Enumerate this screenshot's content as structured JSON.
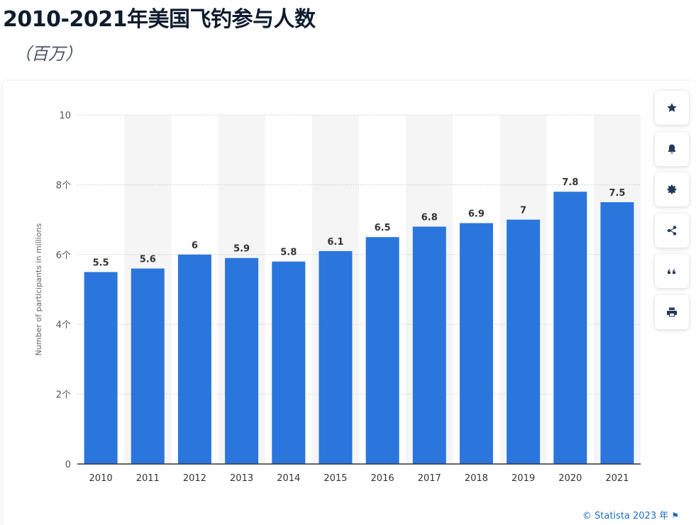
{
  "header": {
    "title": "2010-2021年美国飞钓参与人数",
    "subtitle": "（百万）"
  },
  "toolbar": {
    "buttons": [
      {
        "icon": "star-icon"
      },
      {
        "icon": "bell-icon"
      },
      {
        "icon": "gear-icon"
      },
      {
        "icon": "share-icon"
      },
      {
        "icon": "quote-icon"
      },
      {
        "icon": "print-icon"
      }
    ]
  },
  "footer": {
    "credit": "© Statista 2023 年"
  },
  "colors": {
    "bar": "#2a76dd",
    "band": "#f5f5f5",
    "grid": "#c8c8c8",
    "axis": "#333333"
  },
  "chart_data": {
    "type": "bar",
    "title": "",
    "xlabel": "",
    "ylabel": "Number of participants in millions",
    "categories": [
      "2010",
      "2011",
      "2012",
      "2013",
      "2014",
      "2015",
      "2016",
      "2017",
      "2018",
      "2019",
      "2020",
      "2021"
    ],
    "values": [
      5.5,
      5.6,
      6,
      5.9,
      5.8,
      6.1,
      6.5,
      6.8,
      6.9,
      7,
      7.8,
      7.5
    ],
    "value_labels": [
      "5.5",
      "5.6",
      "6",
      "5.9",
      "5.8",
      "6.1",
      "6.5",
      "6.8",
      "6.9",
      "7",
      "7.8",
      "7.5"
    ],
    "ylim": [
      0,
      10
    ],
    "yticks": [
      0,
      2,
      4,
      6,
      8,
      10
    ],
    "ytick_labels": [
      "0",
      "2个",
      "4个",
      "6个",
      "8个",
      "10"
    ],
    "grid": true,
    "legend": "none"
  }
}
